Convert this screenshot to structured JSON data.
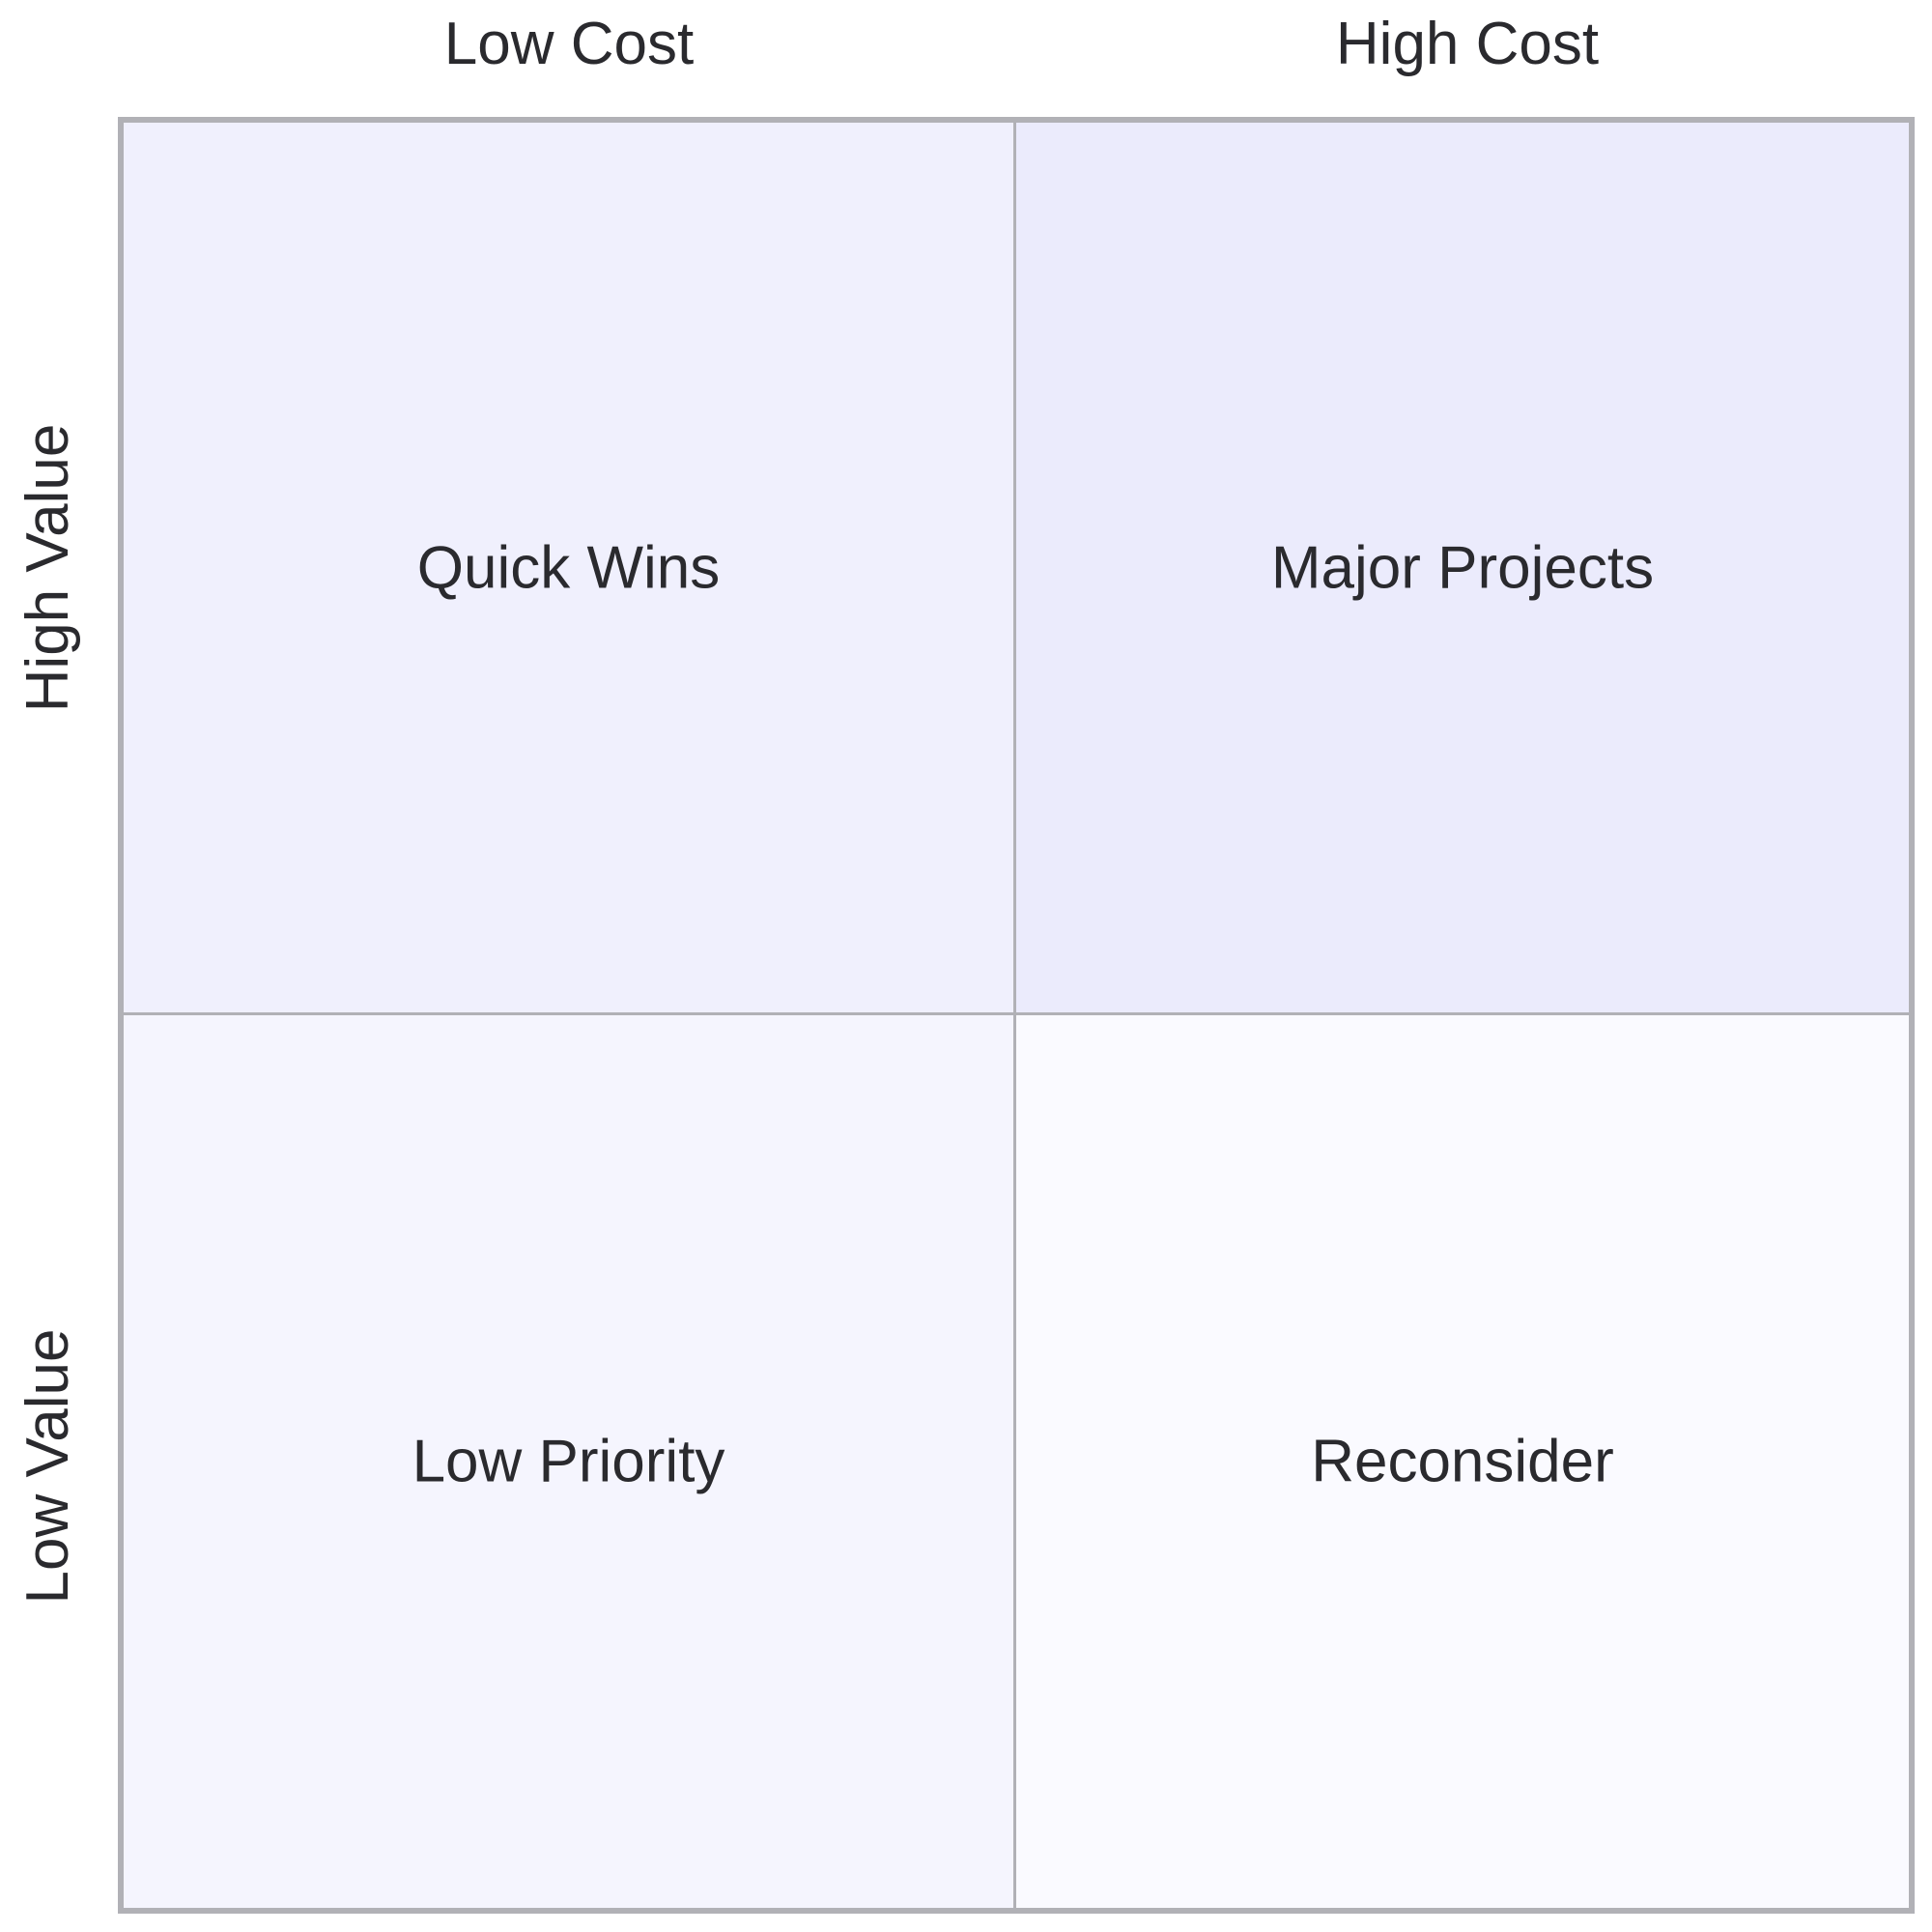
{
  "columns": {
    "left_label": "Low Cost",
    "right_label": "High Cost"
  },
  "rows": {
    "top_label": "High Value",
    "bottom_label": "Low Value"
  },
  "quadrants": [
    {
      "label": "Quick Wins",
      "color": "#f0f0fd"
    },
    {
      "label": "Major Projects",
      "color": "#ebebfc"
    },
    {
      "label": "Low Priority",
      "color": "#f5f5fe"
    },
    {
      "label": "Reconsider",
      "color": "#fafaff"
    }
  ],
  "colors": {
    "border": "#b1b1b6",
    "text": "#2a2a2e"
  }
}
